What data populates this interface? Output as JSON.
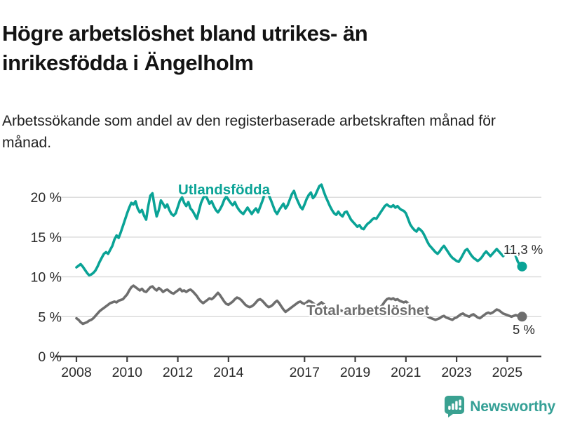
{
  "header": {
    "title": "Högre arbetslöshet bland utrikes- än inrikesfödda i Ängelholm",
    "subtitle": "Arbetssökande som andel av den registerbaserade arbetskraften månad för månad."
  },
  "chart_data": {
    "type": "line",
    "title": "Högre arbetslöshet bland utrikes- än inrikesfödda i Ängelholm",
    "subtitle": "Arbetssökande som andel av den registerbaserade arbetskraften månad för månad.",
    "x_unit": "month",
    "x_start": "2008-01",
    "x_end": "2025-08",
    "ylim": [
      0,
      22.5
    ],
    "grid": "horizontal",
    "legend_position": "inline-labels",
    "x_ticks": [
      {
        "year": 2008,
        "label": "2008"
      },
      {
        "year": 2010,
        "label": "2010"
      },
      {
        "year": 2012,
        "label": "2012"
      },
      {
        "year": 2014,
        "label": "2014"
      },
      {
        "year": 2017,
        "label": "2017"
      },
      {
        "year": 2019,
        "label": "2019"
      },
      {
        "year": 2021,
        "label": "2021"
      },
      {
        "year": 2023,
        "label": "2023"
      },
      {
        "year": 2025,
        "label": "2025"
      }
    ],
    "y_ticks": [
      {
        "value": 0,
        "label": "0 %"
      },
      {
        "value": 5,
        "label": "5 %"
      },
      {
        "value": 10,
        "label": "10 %"
      },
      {
        "value": 15,
        "label": "15 %"
      },
      {
        "value": 20,
        "label": "20 %"
      }
    ],
    "style": {
      "grid_color": "#d9d9d9",
      "axis_color": "#3f3f3f",
      "axis_text_color": "#2b2b2b",
      "end_label_color": "#2a2a2a"
    },
    "series": [
      {
        "name": "Utlandsfödda",
        "color": "#0aa396",
        "end_label": "11,3 %",
        "last_value": 11.3,
        "values": [
          11.2,
          11.4,
          11.6,
          11.3,
          10.9,
          10.5,
          10.2,
          10.3,
          10.5,
          10.8,
          11.3,
          11.9,
          12.4,
          12.9,
          13.1,
          12.9,
          13.4,
          13.9,
          14.7,
          15.2,
          14.9,
          15.6,
          16.4,
          17.2,
          18.0,
          18.7,
          19.3,
          19.1,
          19.5,
          18.6,
          18.1,
          18.4,
          17.7,
          17.2,
          18.9,
          20.2,
          20.5,
          18.9,
          17.6,
          18.4,
          19.6,
          19.2,
          18.7,
          19.1,
          18.4,
          17.9,
          17.7,
          18.0,
          18.8,
          19.6,
          20.0,
          19.3,
          18.9,
          19.4,
          18.6,
          18.3,
          17.8,
          17.3,
          18.3,
          19.3,
          19.9,
          20.3,
          19.8,
          19.2,
          19.5,
          18.9,
          18.4,
          18.1,
          18.5,
          19.0,
          19.7,
          20.1,
          19.7,
          19.3,
          19.0,
          19.4,
          18.8,
          18.4,
          18.1,
          17.9,
          18.3,
          18.7,
          18.3,
          17.9,
          18.3,
          18.6,
          18.1,
          18.8,
          19.5,
          20.3,
          20.9,
          20.3,
          19.7,
          19.0,
          18.3,
          17.9,
          18.4,
          18.8,
          19.2,
          18.6,
          19.0,
          19.7,
          20.4,
          20.8,
          20.0,
          19.4,
          18.8,
          18.5,
          19.1,
          19.8,
          20.3,
          20.6,
          19.9,
          20.2,
          20.8,
          21.4,
          21.6,
          20.8,
          20.1,
          19.5,
          18.9,
          18.4,
          18.0,
          17.8,
          18.2,
          17.8,
          17.6,
          18.1,
          18.2,
          17.7,
          17.2,
          16.9,
          16.6,
          16.3,
          16.5,
          16.1,
          16.0,
          16.4,
          16.7,
          16.9,
          17.2,
          17.4,
          17.3,
          17.7,
          18.1,
          18.5,
          18.9,
          19.1,
          18.9,
          18.8,
          19.0,
          18.7,
          18.9,
          18.6,
          18.4,
          18.3,
          18.0,
          17.3,
          16.6,
          16.2,
          15.9,
          15.7,
          16.1,
          15.9,
          15.6,
          15.1,
          14.5,
          14.0,
          13.7,
          13.4,
          13.1,
          12.9,
          13.2,
          13.6,
          13.9,
          13.5,
          13.1,
          12.7,
          12.4,
          12.2,
          12.0,
          11.9,
          12.3,
          12.8,
          13.3,
          13.5,
          13.1,
          12.7,
          12.4,
          12.2,
          12.0,
          12.2,
          12.5,
          12.9,
          13.2,
          12.9,
          12.6,
          12.9,
          13.2,
          13.5,
          13.2,
          12.9,
          12.6,
          12.9,
          13.2,
          13.5,
          13.7,
          13.3,
          12.6,
          11.9,
          11.5,
          11.3
        ]
      },
      {
        "name": "Total arbetslöshet",
        "color": "#6e6e6e",
        "end_label": "5 %",
        "last_value": 5.0,
        "values": [
          4.8,
          4.6,
          4.3,
          4.1,
          4.2,
          4.3,
          4.5,
          4.6,
          4.8,
          5.1,
          5.4,
          5.7,
          5.9,
          6.1,
          6.3,
          6.5,
          6.7,
          6.8,
          6.9,
          6.8,
          7.0,
          7.1,
          7.2,
          7.5,
          7.8,
          8.3,
          8.7,
          8.9,
          8.7,
          8.5,
          8.3,
          8.5,
          8.2,
          8.1,
          8.4,
          8.7,
          8.8,
          8.5,
          8.3,
          8.6,
          8.4,
          8.1,
          8.3,
          8.4,
          8.2,
          8.0,
          7.9,
          8.1,
          8.3,
          8.5,
          8.2,
          8.3,
          8.1,
          8.3,
          8.4,
          8.2,
          7.9,
          7.6,
          7.2,
          6.9,
          6.7,
          6.9,
          7.1,
          7.3,
          7.2,
          7.4,
          7.7,
          8.0,
          7.7,
          7.3,
          6.9,
          6.6,
          6.5,
          6.7,
          6.9,
          7.2,
          7.4,
          7.3,
          7.1,
          6.8,
          6.5,
          6.3,
          6.2,
          6.3,
          6.5,
          6.8,
          7.1,
          7.2,
          7.0,
          6.7,
          6.4,
          6.2,
          6.3,
          6.5,
          6.8,
          7.0,
          6.7,
          6.3,
          5.9,
          5.6,
          5.8,
          6.0,
          6.2,
          6.4,
          6.6,
          6.8,
          6.9,
          6.7,
          6.6,
          6.8,
          7.0,
          6.9,
          6.7,
          6.5,
          6.4,
          6.6,
          6.8,
          6.6,
          6.4,
          6.2,
          6.1,
          6.0,
          5.9,
          5.8,
          5.9,
          5.8,
          5.7,
          5.8,
          5.9,
          5.7,
          5.6,
          5.5,
          5.5,
          5.4,
          5.5,
          5.4,
          5.3,
          5.5,
          5.6,
          5.7,
          5.8,
          5.9,
          5.8,
          6.0,
          6.2,
          6.5,
          6.9,
          7.2,
          7.3,
          7.2,
          7.3,
          7.1,
          7.2,
          7.0,
          6.9,
          6.8,
          6.9,
          6.7,
          6.4,
          6.2,
          6.0,
          5.8,
          5.9,
          5.7,
          5.5,
          5.3,
          5.1,
          4.9,
          4.8,
          4.7,
          4.6,
          4.7,
          4.8,
          5.0,
          5.1,
          4.9,
          4.8,
          4.7,
          4.6,
          4.8,
          4.9,
          5.1,
          5.3,
          5.4,
          5.2,
          5.1,
          5.0,
          5.2,
          5.3,
          5.1,
          4.9,
          4.8,
          5.0,
          5.2,
          5.4,
          5.5,
          5.4,
          5.5,
          5.7,
          5.9,
          5.8,
          5.6,
          5.4,
          5.3,
          5.2,
          5.1,
          5.0,
          5.1,
          5.2,
          5.1,
          5.0,
          5.0
        ]
      }
    ]
  },
  "footer": {
    "brand": "Newsworthy",
    "brand_color": "#35a096",
    "logo_icon": "newsworthy-bar-chart-bubble-icon"
  }
}
